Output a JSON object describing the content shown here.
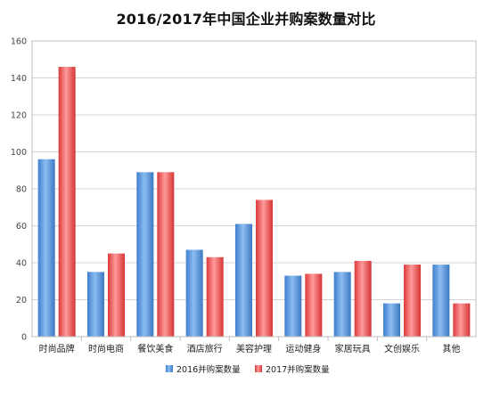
{
  "chart_data": {
    "type": "bar",
    "title": "2016/2017年中国企业并购案数量对比",
    "xlabel": "",
    "ylabel": "",
    "ylim": [
      0,
      160
    ],
    "yticks": [
      0,
      20,
      40,
      60,
      80,
      100,
      120,
      140,
      160
    ],
    "grid": true,
    "legend_position": "bottom",
    "categories": [
      "时尚品牌",
      "时尚电商",
      "餐饮美食",
      "酒店旅行",
      "美容护理",
      "运动健身",
      "家居玩具",
      "文创娱乐",
      "其他"
    ],
    "series": [
      {
        "name": "2016并购案数量",
        "color": "#5b9bd5",
        "values": [
          96,
          35,
          89,
          47,
          61,
          33,
          35,
          18,
          39
        ]
      },
      {
        "name": "2017并购案数量",
        "color": "#ee5a5a",
        "values": [
          146,
          45,
          89,
          43,
          74,
          34,
          41,
          39,
          18
        ]
      }
    ]
  }
}
